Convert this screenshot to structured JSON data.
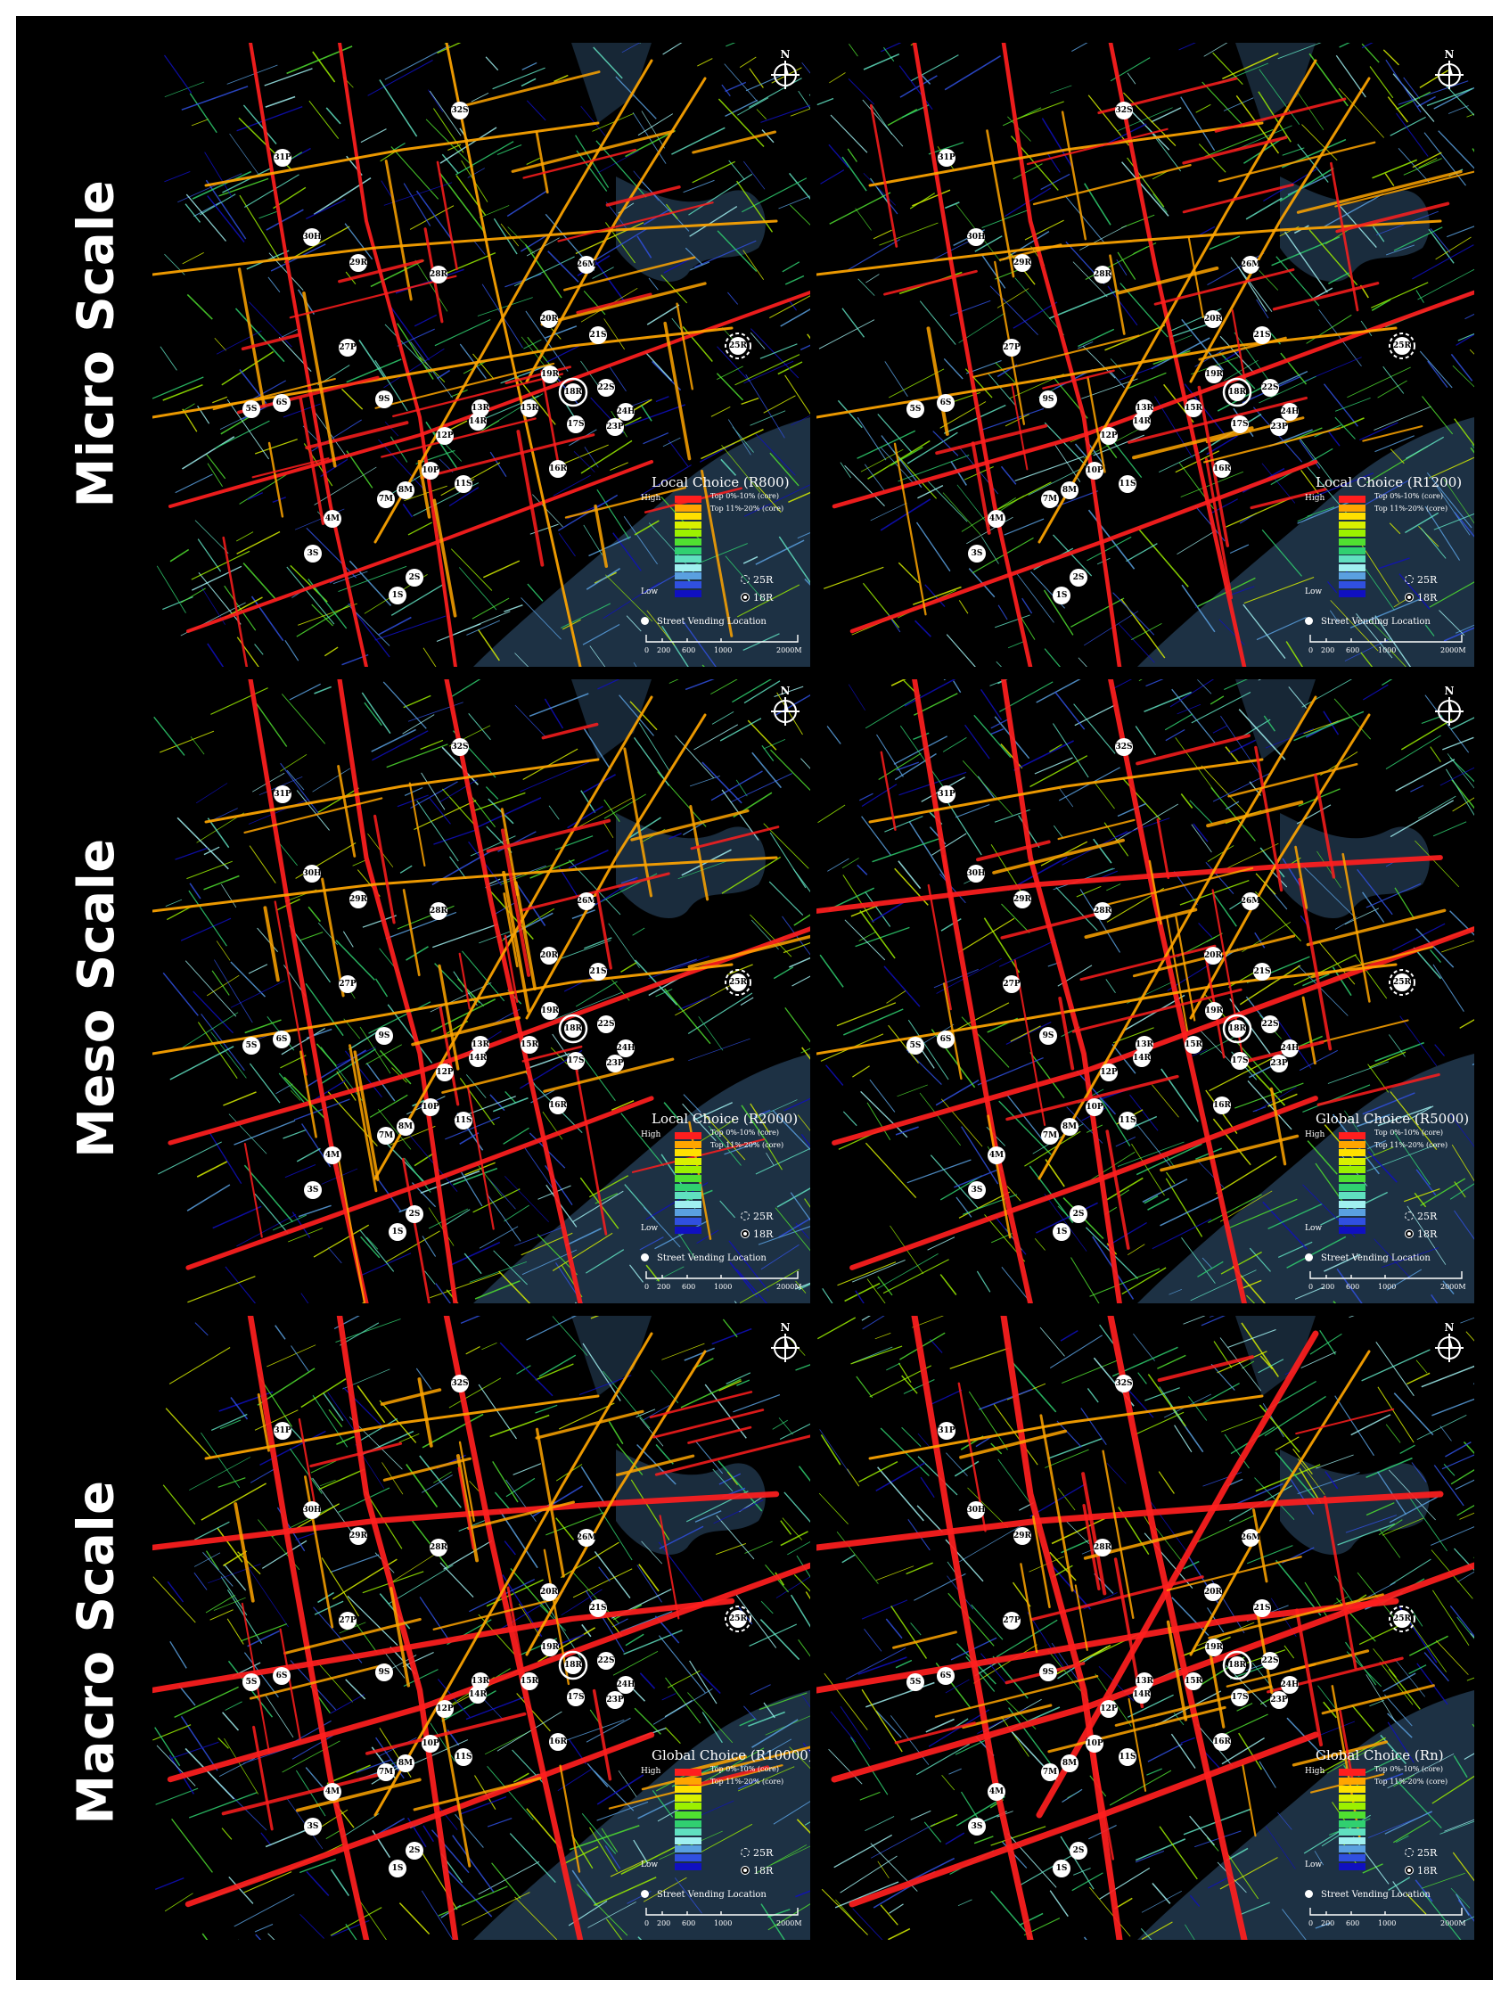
{
  "rows": [
    {
      "label": "Micro Scale"
    },
    {
      "label": "Meso Scale"
    },
    {
      "label": "Macro Scale"
    }
  ],
  "panels": [
    {
      "title": "Local Choice (R800)"
    },
    {
      "title": "Local Choice (R1200)"
    },
    {
      "title": "Local Choice (R2000)"
    },
    {
      "title": "Global Choice (R5000)"
    },
    {
      "title": "Global Choice (R10000)"
    },
    {
      "title": "Global Choice (Rn)"
    }
  ],
  "north_label": "N",
  "legend": {
    "high": "High",
    "low": "Low",
    "top_core_1": "Top 0%-10% (core)",
    "top_core_2": "Top 11%-20% (core)",
    "bands": [
      "#ff1e1e",
      "#ffa500",
      "#ffe000",
      "#d8f000",
      "#9cf000",
      "#50e030",
      "#30d070",
      "#60e0c0",
      "#a0f0f0",
      "#5aa0e0",
      "#3050e0",
      "#1010c0"
    ],
    "marker_25r": "25R",
    "marker_18r": "18R",
    "street_vending": "Street Vending Location",
    "scale_ticks": [
      "0",
      "200",
      "600",
      "1000",
      "2000M"
    ]
  },
  "sites": [
    "32S",
    "31P",
    "30H",
    "29R",
    "28R",
    "26M",
    "20R",
    "21S",
    "25R",
    "27P",
    "19R",
    "22S",
    "5S",
    "6S",
    "9S",
    "13R",
    "15R",
    "18R",
    "14R",
    "17S",
    "24H",
    "12P",
    "23P",
    "10P",
    "11S",
    "16R",
    "7M",
    "8M",
    "4M",
    "3S",
    "2S",
    "1S"
  ],
  "colors": {
    "water": "#1d3144",
    "background": "#000000",
    "core": "#ff1e1e",
    "core2": "#ffa500"
  }
}
